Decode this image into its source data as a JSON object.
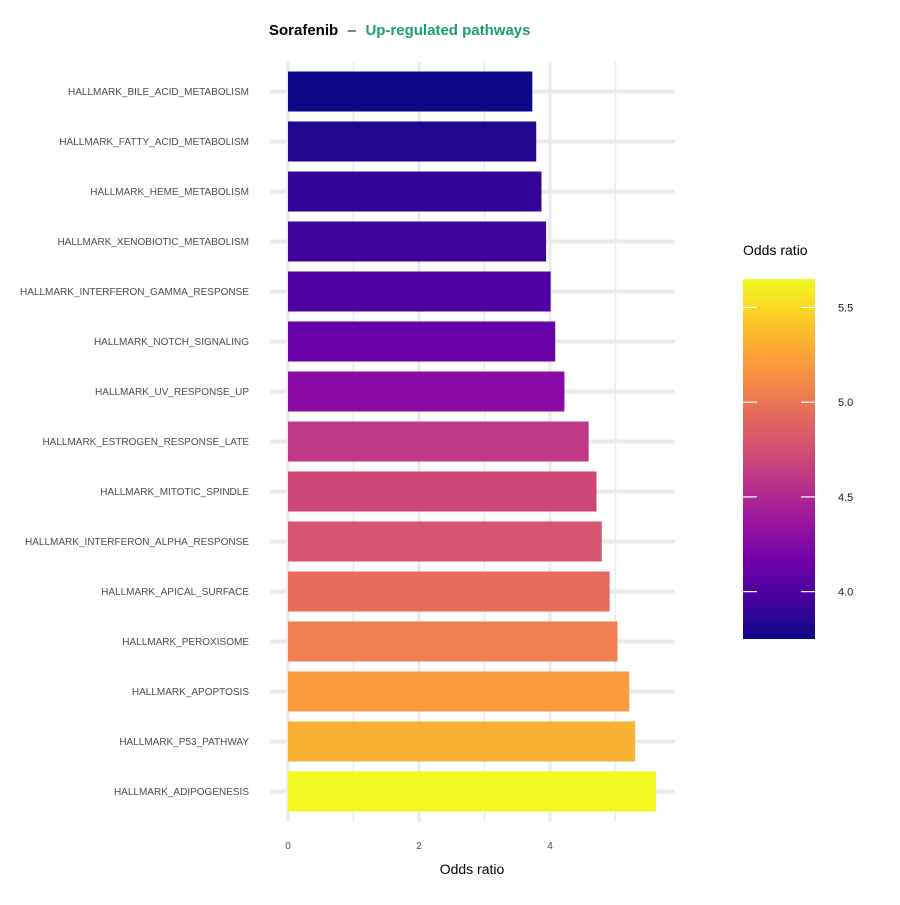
{
  "chart_data": {
    "type": "bar",
    "orientation": "horizontal",
    "title": "Sorafenib",
    "title_separator": "–",
    "subtitle": "Up-regulated pathways",
    "subtitle_color": "#1a9e77",
    "xlabel": "Odds ratio",
    "ylabel": "",
    "xlim": [
      0,
      5.9
    ],
    "xticks": [
      0,
      2,
      4
    ],
    "grid": true,
    "categories": [
      "HALLMARK_BILE_ACID_METABOLISM",
      "HALLMARK_FATTY_ACID_METABOLISM",
      "HALLMARK_HEME_METABOLISM",
      "HALLMARK_XENOBIOTIC_METABOLISM",
      "HALLMARK_INTERFERON_GAMMA_RESPONSE",
      "HALLMARK_NOTCH_SIGNALING",
      "HALLMARK_UV_RESPONSE_UP",
      "HALLMARK_ESTROGEN_RESPONSE_LATE",
      "HALLMARK_MITOTIC_SPINDLE",
      "HALLMARK_INTERFERON_ALPHA_RESPONSE",
      "HALLMARK_APICAL_SURFACE",
      "HALLMARK_PEROXISOME",
      "HALLMARK_APOPTOSIS",
      "HALLMARK_P53_PATHWAY",
      "HALLMARK_ADIPOGENESIS"
    ],
    "values": [
      3.73,
      3.79,
      3.87,
      3.94,
      4.01,
      4.08,
      4.22,
      4.59,
      4.71,
      4.79,
      4.91,
      5.03,
      5.21,
      5.3,
      5.62
    ],
    "fill_colors": [
      "#0d0887",
      "#220690",
      "#330597",
      "#3e049c",
      "#4e02a2",
      "#6a00a8",
      "#8b0aa5",
      "#bf3984",
      "#cc4778",
      "#d5546e",
      "#e56b5d",
      "#ef7f4f",
      "#f89a3e",
      "#f8b133",
      "#f0f921"
    ],
    "legend": {
      "title": "Odds ratio",
      "placement": "right",
      "range": [
        3.75,
        5.65
      ],
      "ticks": [
        4.0,
        4.5,
        5.0,
        5.5
      ],
      "tick_labels": [
        "4.0",
        "4.5",
        "5.0",
        "5.5"
      ],
      "colormap": [
        "#0d0887",
        "#46039f",
        "#7201a8",
        "#9c179e",
        "#bd3786",
        "#d8576b",
        "#ed7953",
        "#fb9f3a",
        "#fdca26",
        "#f0f921"
      ]
    }
  }
}
